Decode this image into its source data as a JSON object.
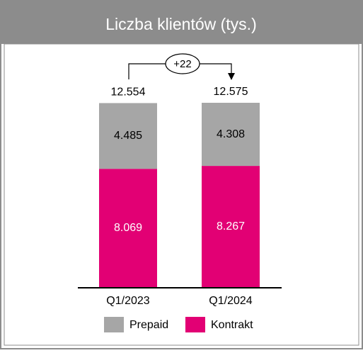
{
  "chart_data": {
    "type": "stacked_bar",
    "title": "Liczba klientów (tys.)",
    "categories": [
      "Q1/2023",
      "Q1/2024"
    ],
    "series": [
      {
        "name": "Kontrakt",
        "color": "#e20074",
        "values": [
          8069,
          8267
        ],
        "value_labels": [
          "8.069",
          "8.267"
        ]
      },
      {
        "name": "Prepaid",
        "color": "#a6a6a6",
        "values": [
          4485,
          4308
        ],
        "value_labels": [
          "4.485",
          "4.308"
        ]
      }
    ],
    "totals": {
      "values": [
        12554,
        12575
      ],
      "value_labels": [
        "12.554",
        "12.575"
      ]
    },
    "annotation": "+22",
    "legend_order": [
      "Prepaid",
      "Kontrakt"
    ]
  }
}
